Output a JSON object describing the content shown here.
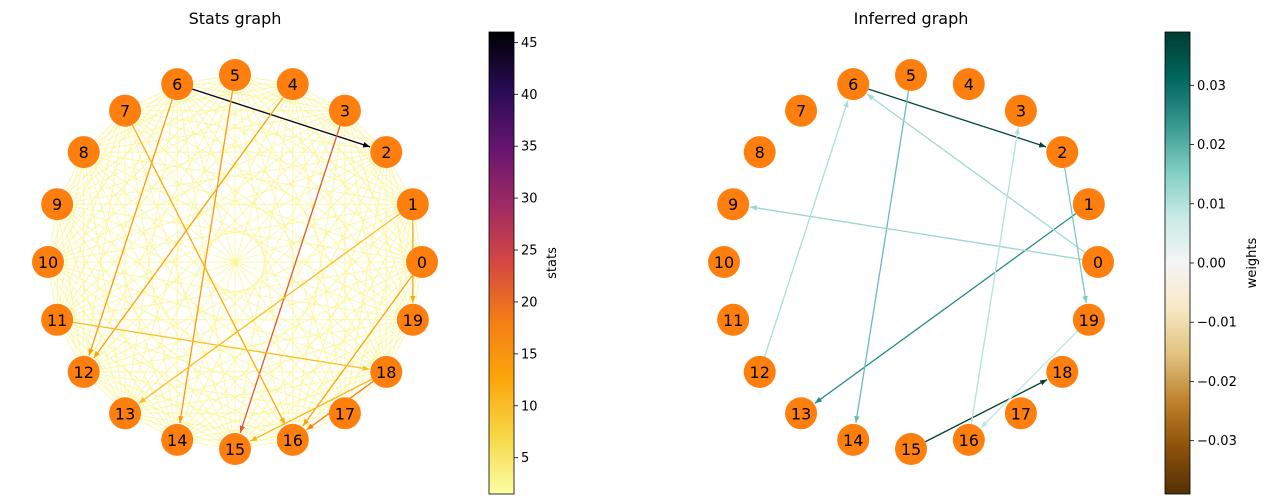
{
  "left_panel": {
    "title": "Stats graph",
    "colorbar": {
      "label": "stats",
      "min": 1.5,
      "max": 46,
      "ticks": [
        5,
        10,
        15,
        20,
        25,
        30,
        35,
        40,
        45
      ],
      "colormap": "inferno_r",
      "stops": [
        "#fcffa4",
        "#f6d746",
        "#fca50a",
        "#f57d15",
        "#d44842",
        "#9f2a63",
        "#65156e",
        "#280b53",
        "#000004"
      ]
    },
    "highlighted_edges": [
      {
        "from": "6",
        "to": "2",
        "value": 45
      },
      {
        "from": "3",
        "to": "15",
        "value": 22
      },
      {
        "from": "5",
        "to": "14",
        "value": 14
      },
      {
        "from": "4",
        "to": "12",
        "value": 13
      },
      {
        "from": "6",
        "to": "12",
        "value": 14
      },
      {
        "from": "7",
        "to": "16",
        "value": 12
      },
      {
        "from": "1",
        "to": "13",
        "value": 10
      },
      {
        "from": "0",
        "to": "16",
        "value": 13
      },
      {
        "from": "18",
        "to": "15",
        "value": 11
      },
      {
        "from": "11",
        "to": "18",
        "value": 10
      },
      {
        "from": "1",
        "to": "19",
        "value": 12
      },
      {
        "from": "18",
        "to": "16",
        "value": 18
      }
    ]
  },
  "right_panel": {
    "title": "Inferred graph",
    "colorbar": {
      "label": "weights",
      "min": -0.039,
      "max": 0.039,
      "ticks": [
        -0.03,
        -0.02,
        -0.01,
        0.0,
        0.01,
        0.02,
        0.03
      ],
      "tick_labels": [
        "−0.03",
        "−0.02",
        "−0.01",
        "0.00",
        "0.01",
        "0.02",
        "0.03"
      ],
      "colormap": "BrBG",
      "stops": [
        "#543005",
        "#8c510a",
        "#bf812d",
        "#dfc27d",
        "#f6e8c3",
        "#f5f5f5",
        "#c7eae5",
        "#80cdc1",
        "#35978f",
        "#01665e",
        "#003c30"
      ]
    },
    "edges": [
      {
        "from": "6",
        "to": "2",
        "weight": 0.037
      },
      {
        "from": "15",
        "to": "18",
        "weight": 0.038
      },
      {
        "from": "1",
        "to": "13",
        "weight": 0.025
      },
      {
        "from": "5",
        "to": "14",
        "weight": 0.018
      },
      {
        "from": "0",
        "to": "6",
        "weight": 0.012
      },
      {
        "from": "0",
        "to": "9",
        "weight": 0.013
      },
      {
        "from": "12",
        "to": "6",
        "weight": 0.011
      },
      {
        "from": "16",
        "to": "3",
        "weight": 0.01
      },
      {
        "from": "2",
        "to": "19",
        "weight": 0.016
      },
      {
        "from": "19",
        "to": "16",
        "weight": 0.009
      }
    ]
  },
  "nodes": [
    "0",
    "1",
    "2",
    "3",
    "4",
    "5",
    "6",
    "7",
    "8",
    "9",
    "10",
    "11",
    "12",
    "13",
    "14",
    "15",
    "16",
    "17",
    "18",
    "19"
  ],
  "node_color": "#ff7f0e"
}
